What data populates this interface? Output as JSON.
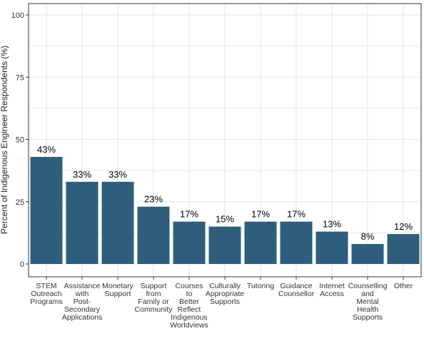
{
  "chart_data": {
    "type": "bar",
    "y_label": "Percent of Indigenous Engineer Respondents (%)",
    "categories": [
      "STEM\nOutreach\nPrograms",
      "Assistance\nwith\nPost-\nSecondary\nApplications",
      "Monetary\nSupport",
      "Support\nfrom\nFamily or\nCommunity",
      "Courses\nto\nBetter\nReflect\nIndigenous\nWorldviews",
      "Culturally\nAppropriate\nSupports",
      "Tutoring",
      "Guidance\nCounsellor",
      "Internet\nAccess",
      "Counselling\nand\nMental\nHealth\nSupports",
      "Other"
    ],
    "values": [
      43,
      33,
      33,
      23,
      17,
      15,
      17,
      17,
      13,
      8,
      12
    ],
    "value_labels": [
      "43%",
      "33%",
      "33%",
      "23%",
      "17%",
      "15%",
      "17%",
      "17%",
      "13%",
      "8%",
      "12%"
    ],
    "color": "#2f5d7c",
    "ylim": [
      0,
      100
    ],
    "yticks": [
      0,
      25,
      50,
      75,
      100
    ],
    "grid": true
  }
}
